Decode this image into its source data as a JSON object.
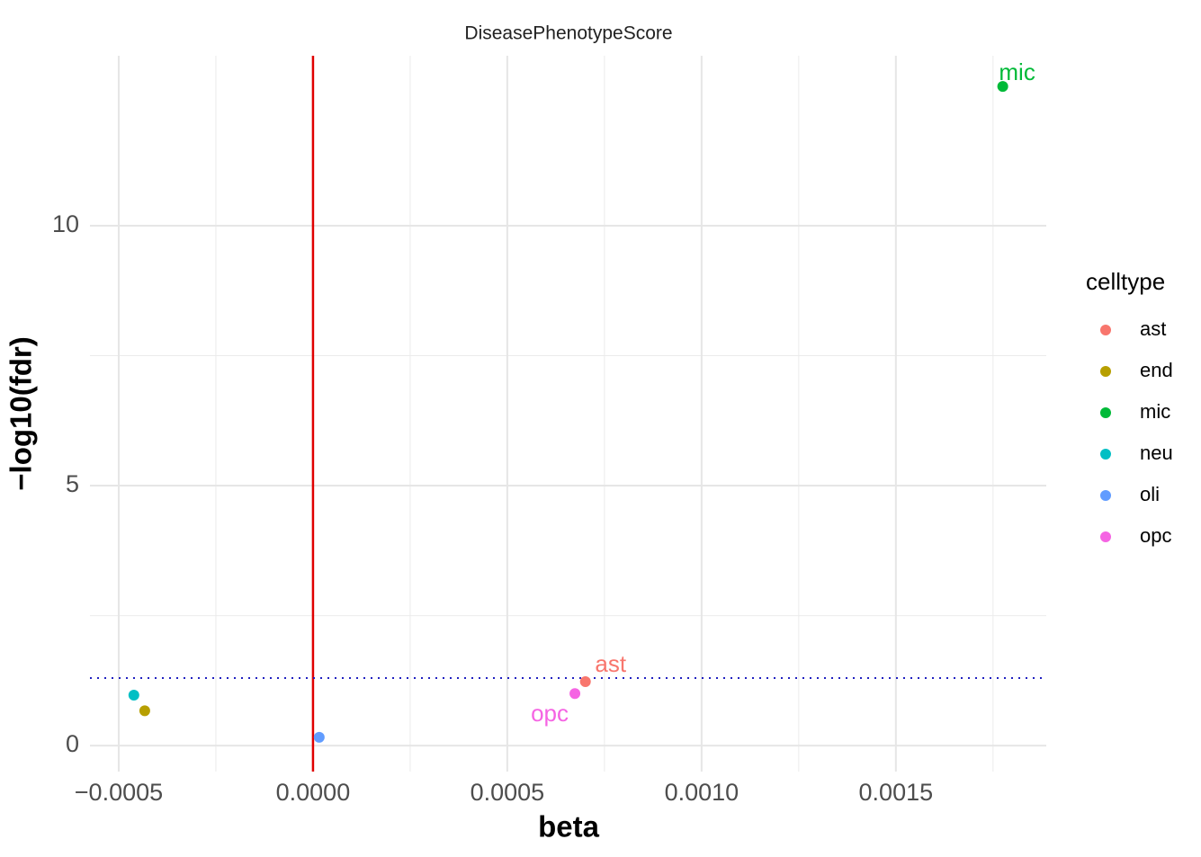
{
  "chart_data": {
    "type": "scatter",
    "title": "DiseasePhenotypeScore",
    "x_label": "beta",
    "y_label": "−log10(fdr)",
    "legend_title": "celltype",
    "xlim": [
      -0.000574,
      0.001887
    ],
    "ylim": [
      -0.5,
      13.27
    ],
    "xticks": [
      {
        "value": -0.0005,
        "label": "−0.0005"
      },
      {
        "value": 0,
        "label": "0.0000"
      },
      {
        "value": 0.0005,
        "label": "0.0005"
      },
      {
        "value": 0.001,
        "label": "0.0010"
      },
      {
        "value": 0.0015,
        "label": "0.0015"
      }
    ],
    "yticks": [
      0,
      5,
      10
    ],
    "minor_xticks": [
      -0.00025,
      0.00025,
      0.00075,
      0.00125,
      0.00175
    ],
    "minor_yticks": [
      2.5,
      7.5
    ],
    "grid": true,
    "legend": "right",
    "vline": 0,
    "vline_color": "#e00000",
    "hline": 1.3,
    "hline_color": "#2020c0",
    "series": [
      {
        "name": "ast",
        "color": "#F8766D",
        "x": [
          0.000701
        ],
        "values": [
          1.23
        ],
        "label": true
      },
      {
        "name": "end",
        "color": "#B79F00",
        "x": [
          -0.000433
        ],
        "values": [
          0.67
        ],
        "label": false
      },
      {
        "name": "mic",
        "color": "#00BA38",
        "x": [
          0.001775
        ],
        "values": [
          12.68
        ],
        "label": true
      },
      {
        "name": "neu",
        "color": "#00BFC4",
        "x": [
          -0.000461
        ],
        "values": [
          0.97
        ],
        "label": false
      },
      {
        "name": "oli",
        "color": "#619CFF",
        "x": [
          1.6e-05
        ],
        "values": [
          0.16
        ],
        "label": false
      },
      {
        "name": "opc",
        "color": "#F564E3",
        "x": [
          0.000674
        ],
        "values": [
          1.0
        ],
        "label": true
      }
    ]
  }
}
